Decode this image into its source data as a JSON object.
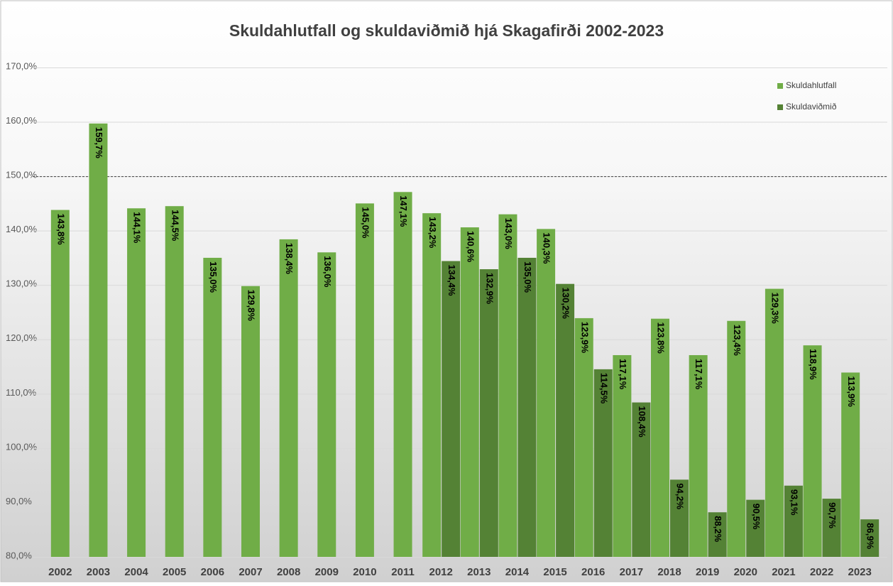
{
  "chart_data": {
    "type": "bar",
    "title": "Skuldahlutfall og skuldaviðmið hjá Skagafirði 2002-2023",
    "categories": [
      "2002",
      "2003",
      "2004",
      "2005",
      "2006",
      "2007",
      "2008",
      "2009",
      "2010",
      "2011",
      "2012",
      "2013",
      "2014",
      "2015",
      "2016",
      "2017",
      "2018",
      "2019",
      "2020",
      "2021",
      "2022",
      "2023"
    ],
    "series": [
      {
        "name": "Skuldahlutfall",
        "color": "#70ad47",
        "values": [
          143.8,
          159.7,
          144.1,
          144.5,
          135.0,
          129.8,
          138.4,
          136.0,
          145.0,
          147.1,
          143.2,
          140.6,
          143.0,
          140.3,
          123.9,
          117.1,
          123.8,
          117.1,
          123.4,
          129.3,
          118.9,
          113.9
        ],
        "value_labels": [
          "143,8%",
          "159,7%",
          "144,1%",
          "144,5%",
          "135,0%",
          "129,8%",
          "138,4%",
          "136,0%",
          "145,0%",
          "147,1%",
          "143,2%",
          "140,6%",
          "143,0%",
          "140,3%",
          "123,9%",
          "117,1%",
          "123,8%",
          "117,1%",
          "123,4%",
          "129,3%",
          "118,9%",
          "113,9%"
        ]
      },
      {
        "name": "Skuldaviðmið",
        "color": "#548235",
        "values": [
          null,
          null,
          null,
          null,
          null,
          null,
          null,
          null,
          null,
          null,
          134.4,
          132.9,
          135.0,
          130.2,
          114.5,
          108.4,
          94.2,
          88.2,
          90.5,
          93.1,
          90.7,
          86.9
        ],
        "value_labels": [
          null,
          null,
          null,
          null,
          null,
          null,
          null,
          null,
          null,
          null,
          "134,4%",
          "132,9%",
          "135,0%",
          "130,2%",
          "114,5%",
          "108,4%",
          "94,2%",
          "88,2%",
          "90,5%",
          "93,1%",
          "90,7%",
          "86,9%"
        ]
      }
    ],
    "ylim": [
      80,
      170
    ],
    "yticks": [
      {
        "value": 80,
        "label": "80,0%"
      },
      {
        "value": 90,
        "label": "90,0%"
      },
      {
        "value": 100,
        "label": "100,0%"
      },
      {
        "value": 110,
        "label": "110,0%"
      },
      {
        "value": 120,
        "label": "120,0%"
      },
      {
        "value": 130,
        "label": "130,0%"
      },
      {
        "value": 140,
        "label": "140,0%"
      },
      {
        "value": 150,
        "label": "150,0%"
      },
      {
        "value": 160,
        "label": "160,0%"
      },
      {
        "value": 170,
        "label": "170,0%"
      }
    ],
    "grid": true,
    "reference_line": 150,
    "legend": "upper right"
  }
}
